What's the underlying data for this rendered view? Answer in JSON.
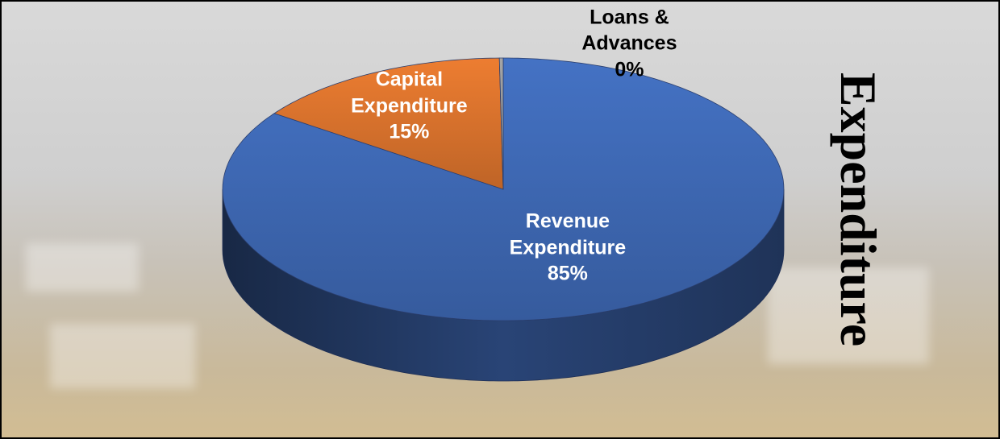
{
  "chart_data": {
    "type": "pie3d",
    "title": "Expenditure",
    "categories": [
      "Revenue Expenditure",
      "Capital Expenditure",
      "Loans & Advances"
    ],
    "values": [
      85,
      15,
      0
    ],
    "value_labels": [
      "85%",
      "15%",
      "0%"
    ],
    "colors": [
      "#4472c4",
      "#ed7d31",
      "#a5a5a5"
    ]
  }
}
